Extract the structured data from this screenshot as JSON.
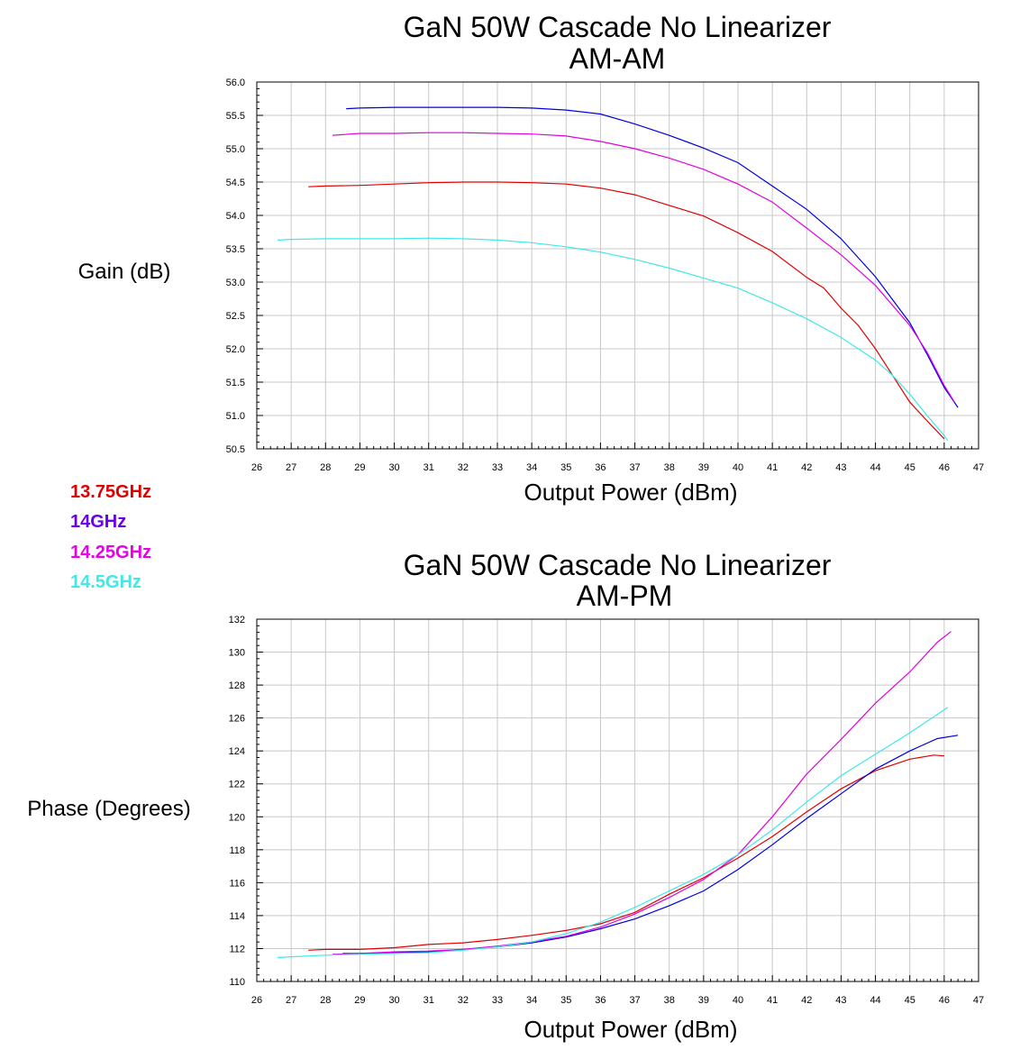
{
  "chart_data": [
    {
      "type": "line",
      "title": "GaN 50W Cascade No Linearizer",
      "subtitle": "AM-AM",
      "xlabel": "Output Power (dBm)",
      "ylabel": "Gain (dB)",
      "xlim": [
        26,
        47
      ],
      "ylim": [
        50.5,
        56.0
      ],
      "xticks": [
        26,
        27,
        28,
        29,
        30,
        31,
        32,
        33,
        34,
        35,
        36,
        37,
        38,
        39,
        40,
        41,
        42,
        43,
        44,
        45,
        46,
        47
      ],
      "yticks": [
        50.5,
        51.0,
        51.5,
        52.0,
        52.5,
        53.0,
        53.5,
        54.0,
        54.5,
        55.0,
        55.5,
        56.0
      ],
      "ytick_labels": [
        "50.5",
        "51.0",
        "51.5",
        "52.0",
        "52.5",
        "53.0",
        "53.5",
        "54.0",
        "54.5",
        "55.0",
        "55.5",
        "56.0"
      ],
      "grid": true,
      "series": [
        {
          "name": "13.75GHz",
          "color": "#e00000",
          "x": [
            27.5,
            28,
            29,
            30,
            31,
            32,
            33,
            34,
            35,
            36,
            37,
            38,
            39,
            40,
            41,
            42,
            42.5,
            43,
            43.5,
            44,
            44.5,
            45,
            45.5,
            46
          ],
          "y": [
            54.43,
            54.44,
            54.45,
            54.47,
            54.49,
            54.5,
            54.5,
            54.49,
            54.47,
            54.41,
            54.31,
            54.15,
            53.99,
            53.74,
            53.46,
            53.07,
            52.91,
            52.61,
            52.35,
            52.0,
            51.6,
            51.2,
            50.92,
            50.65
          ]
        },
        {
          "name": "14GHz",
          "color": "#0000e0",
          "x": [
            28.6,
            29,
            30,
            31,
            32,
            33,
            34,
            35,
            36,
            37,
            38,
            39,
            40,
            41,
            42,
            43,
            44,
            45,
            45.5,
            46,
            46.4
          ],
          "y": [
            55.6,
            55.61,
            55.62,
            55.62,
            55.62,
            55.62,
            55.61,
            55.58,
            55.52,
            55.37,
            55.2,
            55.01,
            54.79,
            54.44,
            54.09,
            53.65,
            53.08,
            52.39,
            51.92,
            51.42,
            51.12
          ]
        },
        {
          "name": "14.25GHz",
          "color": "#e000e0",
          "x": [
            28.2,
            29,
            30,
            31,
            32,
            33,
            34,
            35,
            36,
            37,
            38,
            39,
            40,
            41,
            42,
            43,
            44,
            45,
            45.5,
            46,
            46.3
          ],
          "y": [
            55.2,
            55.23,
            55.23,
            55.24,
            55.24,
            55.23,
            55.22,
            55.19,
            55.11,
            55.0,
            54.86,
            54.69,
            54.47,
            54.2,
            53.81,
            53.41,
            52.95,
            52.35,
            51.95,
            51.45,
            51.2
          ]
        },
        {
          "name": "14.5GHz",
          "color": "#40e8e8",
          "x": [
            26.6,
            27,
            28,
            29,
            30,
            31,
            32,
            33,
            34,
            35,
            36,
            37,
            38,
            39,
            40,
            41,
            42,
            43,
            44,
            44.5,
            45,
            45.5,
            46,
            46.1
          ],
          "y": [
            53.63,
            53.64,
            53.65,
            53.65,
            53.65,
            53.66,
            53.65,
            53.63,
            53.59,
            53.53,
            53.45,
            53.34,
            53.21,
            53.06,
            52.91,
            52.69,
            52.45,
            52.17,
            51.83,
            51.6,
            51.32,
            51.0,
            50.7,
            50.62
          ]
        }
      ]
    },
    {
      "type": "line",
      "title": "GaN 50W Cascade No Linearizer",
      "subtitle": "AM-PM",
      "xlabel": "Output Power (dBm)",
      "ylabel": "Phase (Degrees)",
      "xlim": [
        26,
        47
      ],
      "ylim": [
        110,
        132
      ],
      "xticks": [
        26,
        27,
        28,
        29,
        30,
        31,
        32,
        33,
        34,
        35,
        36,
        37,
        38,
        39,
        40,
        41,
        42,
        43,
        44,
        45,
        46,
        47
      ],
      "yticks": [
        110,
        112,
        114,
        116,
        118,
        120,
        122,
        124,
        126,
        128,
        130,
        132
      ],
      "ytick_labels": [
        "110",
        "112",
        "114",
        "116",
        "118",
        "120",
        "122",
        "124",
        "126",
        "128",
        "130",
        "132"
      ],
      "grid": true,
      "series": [
        {
          "name": "13.75GHz",
          "color": "#e00000",
          "x": [
            27.5,
            28,
            29,
            30,
            31,
            32,
            33,
            34,
            35,
            36,
            37,
            38,
            39,
            40,
            41,
            42,
            43,
            44,
            45,
            45.7,
            46
          ],
          "y": [
            111.9,
            111.95,
            111.95,
            112.05,
            112.25,
            112.35,
            112.55,
            112.8,
            113.1,
            113.5,
            114.2,
            115.3,
            116.3,
            117.5,
            118.8,
            120.3,
            121.7,
            122.8,
            123.5,
            123.75,
            123.7
          ]
        },
        {
          "name": "14GHz",
          "color": "#0000e0",
          "x": [
            28.5,
            29,
            30,
            31,
            32,
            33,
            34,
            35,
            36,
            37,
            38,
            39,
            40,
            41,
            42,
            43,
            44,
            45,
            45.8,
            46.4
          ],
          "y": [
            111.7,
            111.7,
            111.75,
            111.8,
            111.95,
            112.1,
            112.35,
            112.7,
            113.2,
            113.8,
            114.6,
            115.5,
            116.8,
            118.3,
            119.9,
            121.4,
            122.9,
            124.0,
            124.75,
            124.95
          ]
        },
        {
          "name": "14.25GHz",
          "color": "#e000e0",
          "x": [
            28.2,
            29,
            30,
            31,
            32,
            33,
            34,
            35,
            36,
            37,
            38,
            39,
            40,
            41,
            42,
            43,
            44,
            45,
            45.8,
            46.2
          ],
          "y": [
            111.65,
            111.7,
            111.8,
            111.85,
            111.95,
            112.15,
            112.4,
            112.75,
            113.3,
            114.1,
            115.1,
            116.2,
            117.7,
            120.0,
            122.6,
            124.7,
            126.9,
            128.8,
            130.6,
            131.25
          ]
        },
        {
          "name": "14.5GHz",
          "color": "#40e8e8",
          "x": [
            26.6,
            27,
            28,
            29,
            30,
            31,
            32,
            33,
            34,
            35,
            36,
            37,
            38,
            39,
            40,
            41,
            42,
            43,
            44,
            45,
            46,
            46.1
          ],
          "y": [
            111.45,
            111.5,
            111.6,
            111.65,
            111.7,
            111.75,
            111.9,
            112.1,
            112.4,
            112.9,
            113.6,
            114.5,
            115.5,
            116.5,
            117.7,
            119.2,
            120.9,
            122.5,
            123.8,
            125.1,
            126.5,
            126.65
          ]
        }
      ]
    }
  ],
  "legend": [
    {
      "label": "13.75GHz",
      "color": "#e00000"
    },
    {
      "label": "14GHz",
      "color": "#6a00e8"
    },
    {
      "label": "14.25GHz",
      "color": "#e800e8"
    },
    {
      "label": "14.5GHz",
      "color": "#40e8e8"
    }
  ]
}
